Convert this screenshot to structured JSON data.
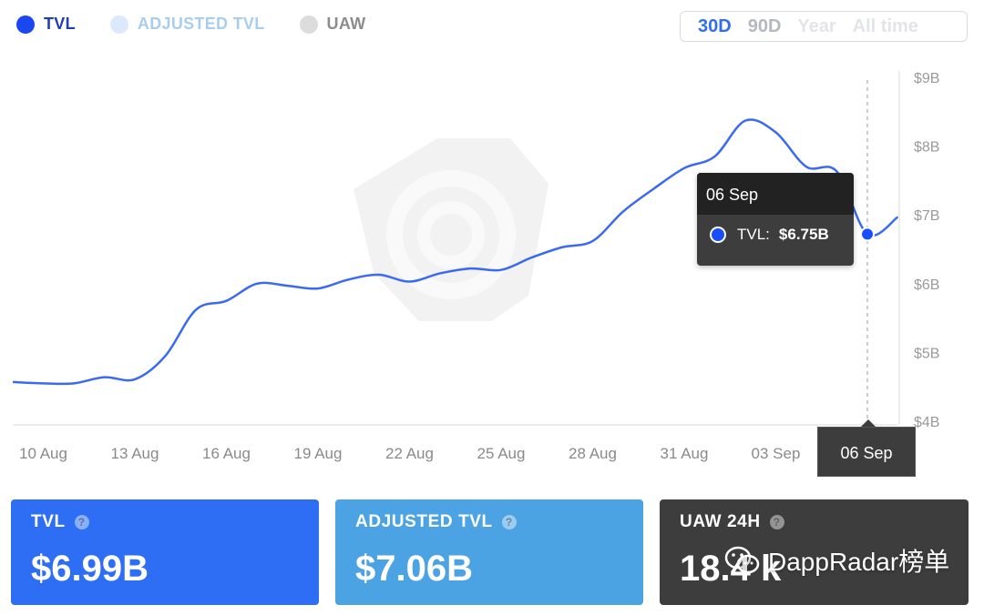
{
  "legend": {
    "items": [
      {
        "label": "TVL",
        "color": "#1a47f0",
        "text_color": "#1f3fb8"
      },
      {
        "label": "ADJUSTED TVL",
        "color": "#dbe9fb",
        "text_color": "#a9cdef"
      },
      {
        "label": "UAW",
        "color": "#dcdcdc",
        "text_color": "#8c8c8c"
      }
    ]
  },
  "range": {
    "options": [
      {
        "label": "30D",
        "color": "#2f6ff0"
      },
      {
        "label": "90D",
        "color": "#b4b8bf"
      },
      {
        "label": "Year",
        "color": "#e2e4e8"
      },
      {
        "label": "All time",
        "color": "#e2e4e8"
      }
    ],
    "selected": "30D"
  },
  "tooltip": {
    "date": "06 Sep",
    "series_label": "TVL:",
    "value": "$6.75B"
  },
  "chart_data": {
    "type": "line",
    "x_tick_labels": [
      "10 Aug",
      "13 Aug",
      "16 Aug",
      "19 Aug",
      "22 Aug",
      "25 Aug",
      "28 Aug",
      "31 Aug",
      "03 Sep",
      "06 Sep"
    ],
    "y_tick_labels": [
      "$9B",
      "$8B",
      "$7B",
      "$6B",
      "$5B",
      "$4B"
    ],
    "ylim": [
      4,
      9
    ],
    "y_unit": "billion USD",
    "grid": false,
    "selected_x": "06 Sep",
    "series": [
      {
        "name": "TVL",
        "color": "#3a6af0",
        "points": [
          [
            0,
            4.57
          ],
          [
            1,
            4.55
          ],
          [
            2,
            4.55
          ],
          [
            3,
            4.64
          ],
          [
            4,
            4.61
          ],
          [
            5,
            4.95
          ],
          [
            6,
            5.62
          ],
          [
            7,
            5.75
          ],
          [
            8,
            6.0
          ],
          [
            9,
            5.97
          ],
          [
            10,
            5.93
          ],
          [
            11,
            6.06
          ],
          [
            12,
            6.13
          ],
          [
            13,
            6.03
          ],
          [
            14,
            6.15
          ],
          [
            15,
            6.22
          ],
          [
            16,
            6.2
          ],
          [
            17,
            6.38
          ],
          [
            18,
            6.53
          ],
          [
            19,
            6.62
          ],
          [
            20,
            7.05
          ],
          [
            21,
            7.38
          ],
          [
            22,
            7.68
          ],
          [
            23,
            7.85
          ],
          [
            24,
            8.37
          ],
          [
            25,
            8.2
          ],
          [
            26,
            7.7
          ],
          [
            27,
            7.63
          ],
          [
            28,
            6.72
          ],
          [
            29,
            6.97
          ]
        ]
      }
    ]
  },
  "cards": [
    {
      "label": "TVL",
      "value": "$6.99B",
      "bg": "#2d6ef5"
    },
    {
      "label": "ADJUSTED TVL",
      "value": "$7.06B",
      "bg": "#4ca3e3"
    },
    {
      "label": "UAW 24H",
      "value": "18.4 k",
      "bg": "#3d3d3d"
    }
  ],
  "watermark": {
    "text": "DappRadar榜单"
  }
}
